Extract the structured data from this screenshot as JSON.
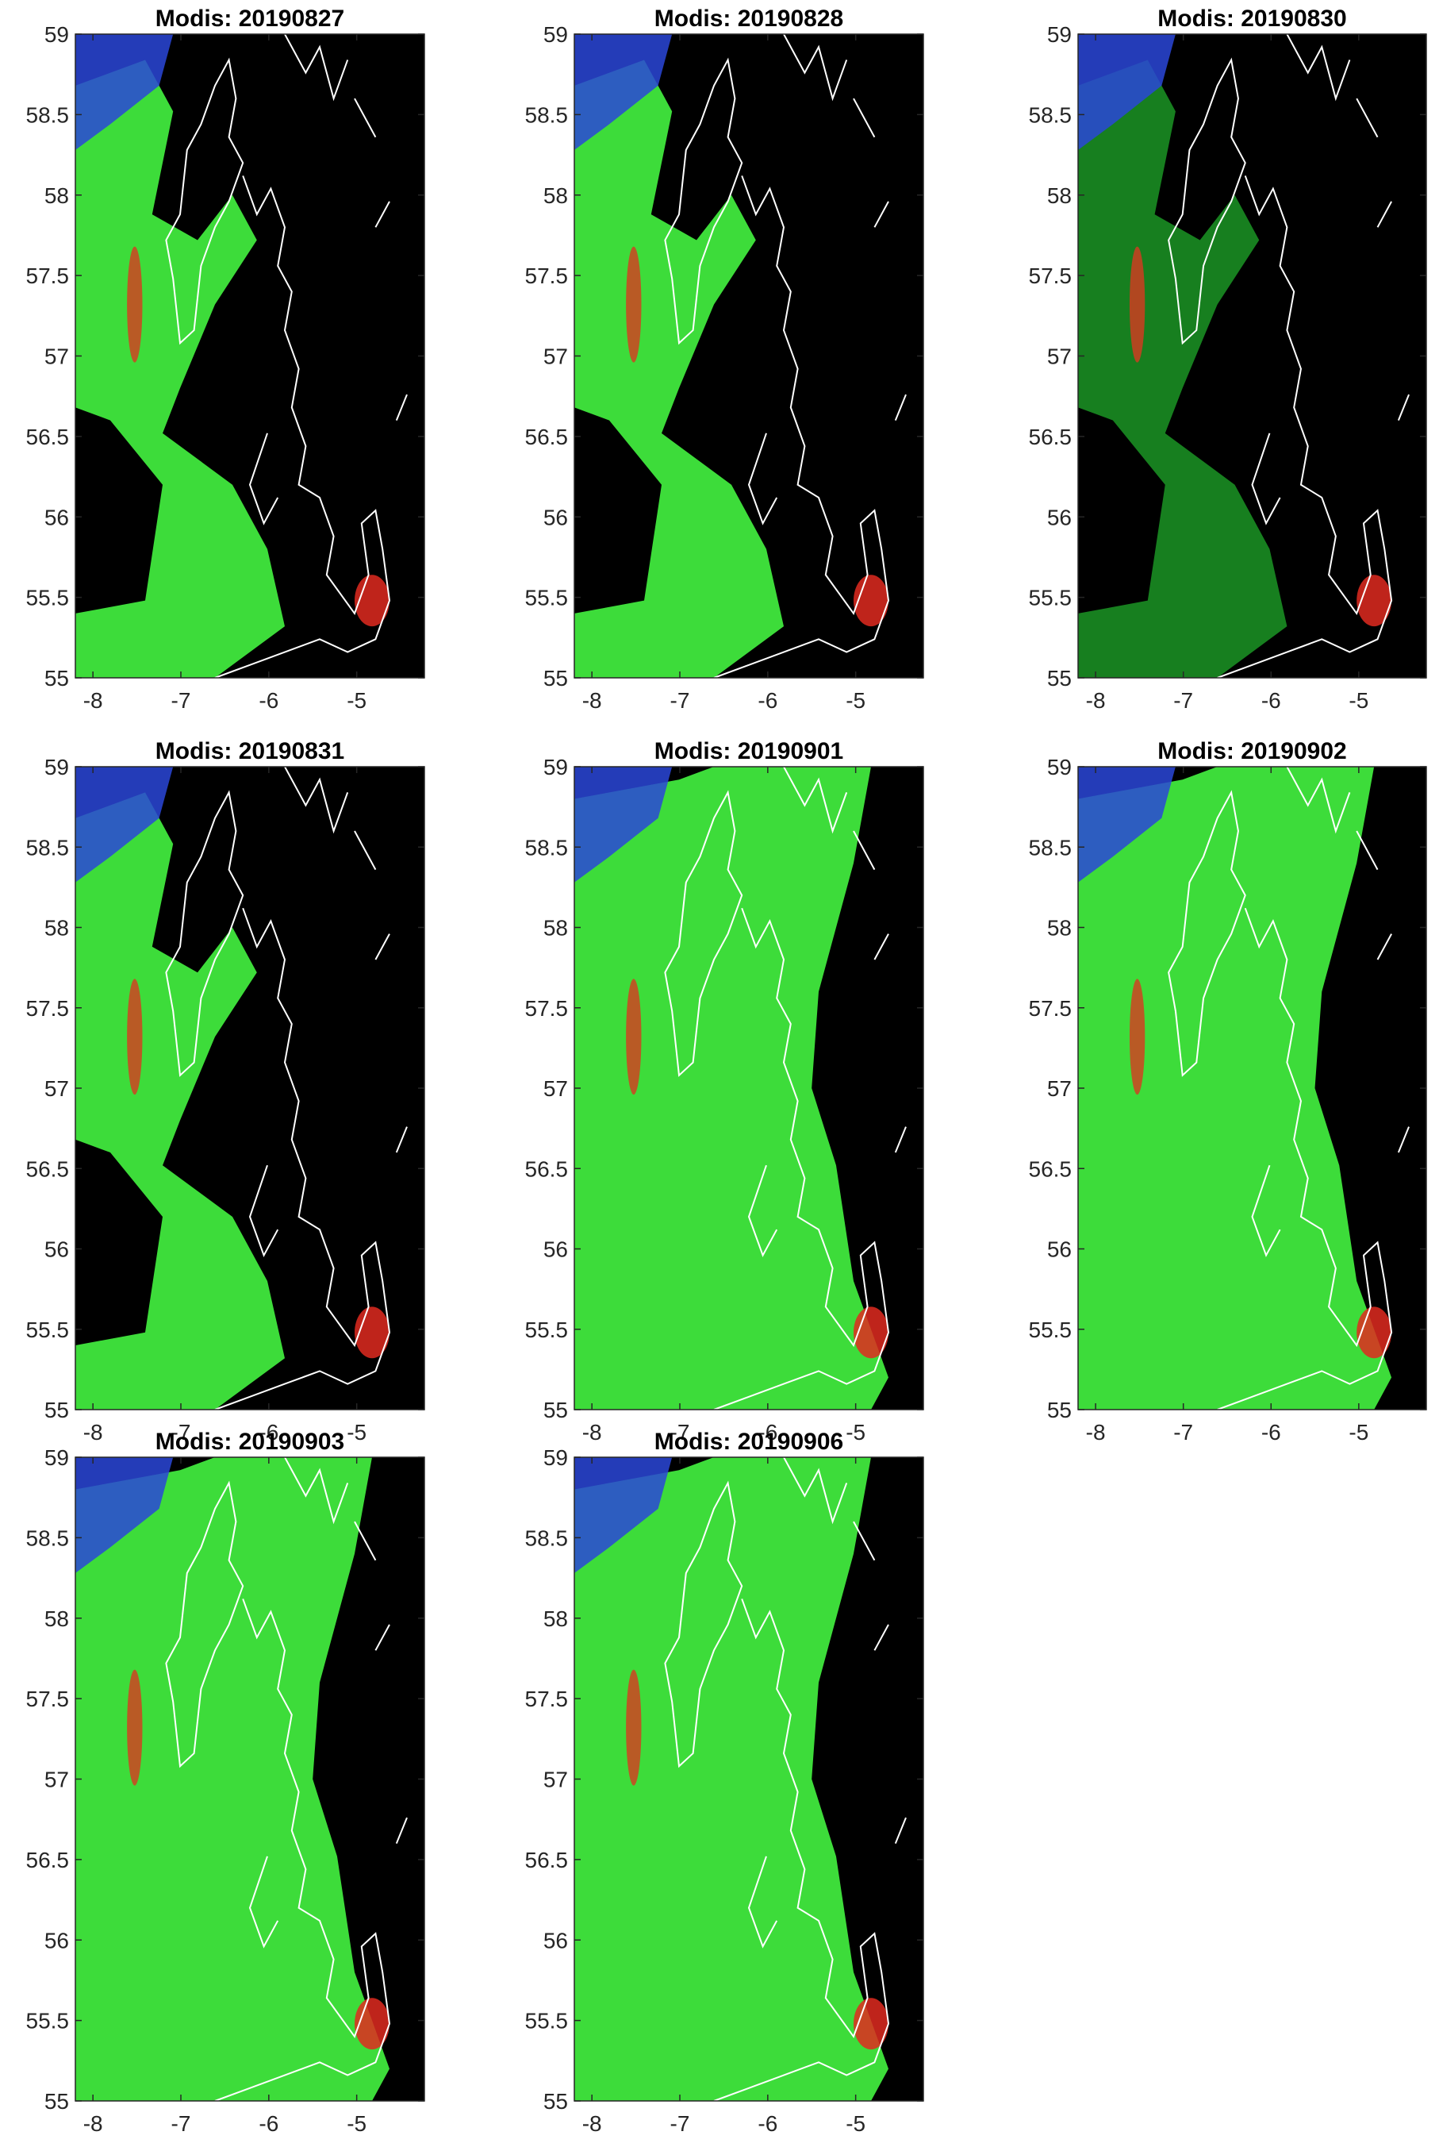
{
  "chart_data": [
    {
      "type": "image",
      "title": "Modis: 20190827",
      "xlim": [
        -8.2,
        -4.23
      ],
      "ylim": [
        55,
        59
      ],
      "xticks": [
        -8,
        -7,
        -6,
        -5
      ],
      "yticks": [
        55,
        55.5,
        56,
        56.5,
        57,
        57.5,
        58,
        58.5,
        59
      ]
    },
    {
      "type": "image",
      "title": "Modis: 20190828",
      "xlim": [
        -8.2,
        -4.23
      ],
      "ylim": [
        55,
        59
      ],
      "xticks": [
        -8,
        -7,
        -6,
        -5
      ],
      "yticks": [
        55,
        55.5,
        56,
        56.5,
        57,
        57.5,
        58,
        58.5,
        59
      ]
    },
    {
      "type": "image",
      "title": "Modis: 20190830",
      "xlim": [
        -8.2,
        -4.23
      ],
      "ylim": [
        55,
        59
      ],
      "xticks": [
        -8,
        -7,
        -6,
        -5
      ],
      "yticks": [
        55,
        55.5,
        56,
        56.5,
        57,
        57.5,
        58,
        58.5,
        59
      ]
    },
    {
      "type": "image",
      "title": "Modis: 20190831",
      "xlim": [
        -8.2,
        -4.23
      ],
      "ylim": [
        55,
        59
      ],
      "xticks": [
        -8,
        -7,
        -6,
        -5
      ],
      "yticks": [
        55,
        55.5,
        56,
        56.5,
        57,
        57.5,
        58,
        58.5,
        59
      ]
    },
    {
      "type": "image",
      "title": "Modis: 20190901",
      "xlim": [
        -8.2,
        -4.23
      ],
      "ylim": [
        55,
        59
      ],
      "xticks": [
        -8,
        -7,
        -6,
        -5
      ],
      "yticks": [
        55,
        55.5,
        56,
        56.5,
        57,
        57.5,
        58,
        58.5,
        59
      ]
    },
    {
      "type": "image",
      "title": "Modis: 20190902",
      "xlim": [
        -8.2,
        -4.23
      ],
      "ylim": [
        55,
        59
      ],
      "xticks": [
        -8,
        -7,
        -6,
        -5
      ],
      "yticks": [
        55,
        55.5,
        56,
        56.5,
        57,
        57.5,
        58,
        58.5,
        59
      ]
    },
    {
      "type": "image",
      "title": "Modis: 20190903",
      "xlim": [
        -8.2,
        -4.23
      ],
      "ylim": [
        55,
        59
      ],
      "xticks": [
        -8,
        -7,
        -6,
        -5
      ],
      "yticks": [
        55,
        55.5,
        56,
        56.5,
        57,
        57.5,
        58,
        58.5,
        59
      ]
    },
    {
      "type": "image",
      "title": "Modis: 20190906",
      "xlim": [
        -8.2,
        -4.23
      ],
      "ylim": [
        55,
        59
      ],
      "xticks": [
        -8,
        -7,
        -6,
        -5
      ],
      "yticks": [
        55,
        55.5,
        56,
        56.5,
        57,
        57.5,
        58,
        58.5,
        59
      ]
    }
  ]
}
